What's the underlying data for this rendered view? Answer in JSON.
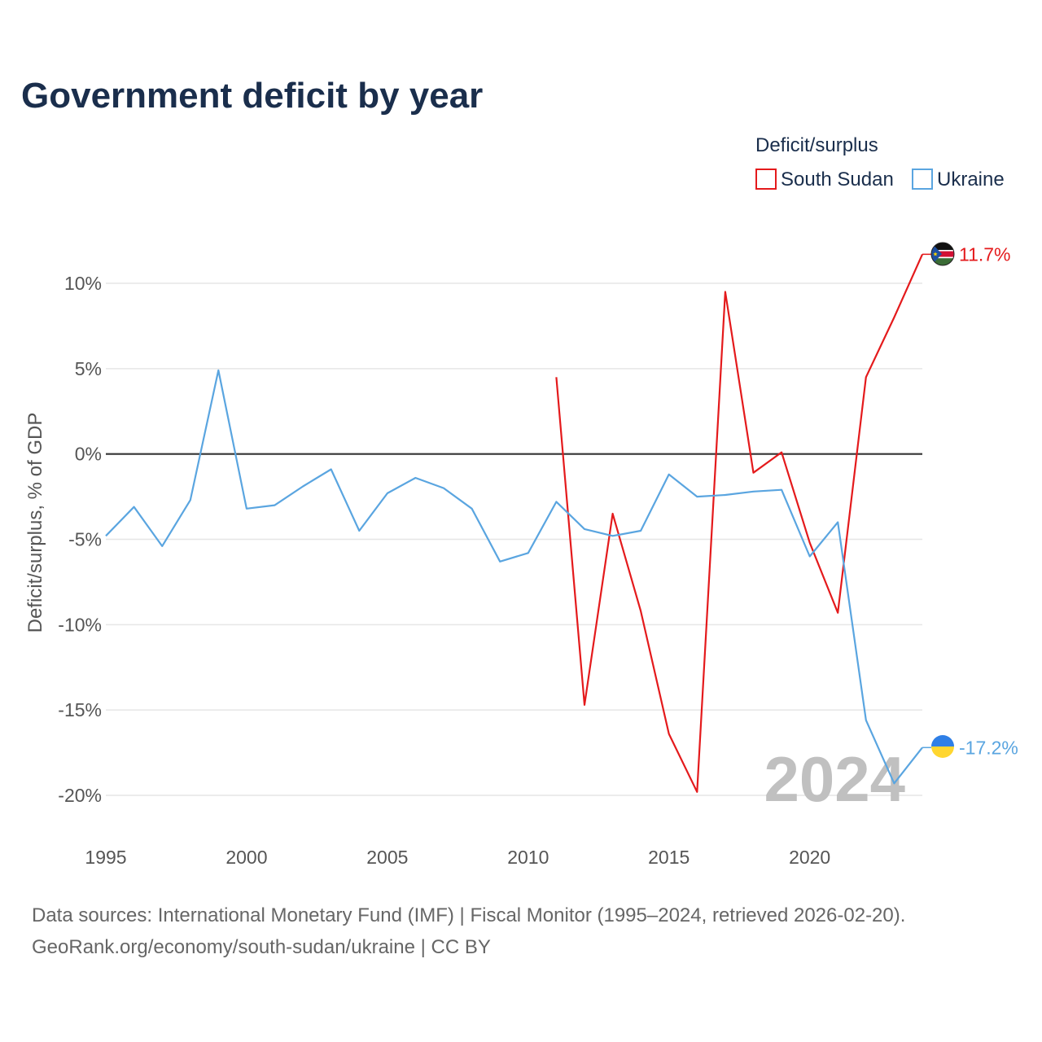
{
  "chart_data": {
    "type": "line",
    "title": "Government deficit by year",
    "xlabel": "",
    "ylabel": "Deficit/surplus, % of GDP",
    "xlim": [
      1995,
      2024
    ],
    "ylim": [
      -20,
      10
    ],
    "x_ticks": [
      1995,
      2000,
      2005,
      2010,
      2015,
      2020
    ],
    "x_tick_labels": [
      "1995",
      "2000",
      "2005",
      "2010",
      "2015",
      "2020"
    ],
    "y_ticks": [
      10,
      5,
      0,
      -5,
      -10,
      -15,
      -20
    ],
    "y_tick_labels": [
      "10%",
      "5%",
      "0%",
      "-5%",
      "-10%",
      "-15%",
      "-20%"
    ],
    "legend": {
      "title": "Deficit/surplus",
      "position": "top-right",
      "entries": [
        "South Sudan",
        "Ukraine"
      ]
    },
    "current_year": "2024",
    "series": [
      {
        "name": "South Sudan",
        "color": "#e41a1c",
        "end_label": "11.7%",
        "flag_icon": "south-sudan-flag-icon",
        "x": [
          2011,
          2012,
          2013,
          2014,
          2015,
          2016,
          2017,
          2018,
          2019,
          2020,
          2021,
          2022,
          2023,
          2024
        ],
        "values": [
          4.5,
          -14.7,
          -3.5,
          -9.2,
          -16.4,
          -19.8,
          9.5,
          -1.1,
          0.1,
          -5.2,
          -9.3,
          4.5,
          8.0,
          11.7
        ]
      },
      {
        "name": "Ukraine",
        "color": "#5aa5e0",
        "end_label": "-17.2%",
        "flag_icon": "ukraine-flag-icon",
        "x": [
          1995,
          1996,
          1997,
          1998,
          1999,
          2000,
          2001,
          2002,
          2003,
          2004,
          2005,
          2006,
          2007,
          2008,
          2009,
          2010,
          2011,
          2012,
          2013,
          2014,
          2015,
          2016,
          2017,
          2018,
          2019,
          2020,
          2021,
          2022,
          2023,
          2024
        ],
        "values": [
          -4.8,
          -3.1,
          -5.4,
          -2.7,
          4.9,
          -3.2,
          -3.0,
          -1.9,
          -0.9,
          -4.5,
          -2.3,
          -1.4,
          -2.0,
          -3.2,
          -6.3,
          -5.8,
          -2.8,
          -4.4,
          -4.8,
          -4.5,
          -1.2,
          -2.5,
          -2.4,
          -2.2,
          -2.1,
          -6.0,
          -4.0,
          -15.6,
          -19.3,
          -17.2
        ]
      }
    ]
  },
  "footer": {
    "source_line": "Data sources: International Monetary Fund (IMF) | Fiscal Monitor (1995–2024, retrieved 2026-02-20).",
    "url_line": "GeoRank.org/economy/south-sudan/ukraine | CC BY"
  }
}
